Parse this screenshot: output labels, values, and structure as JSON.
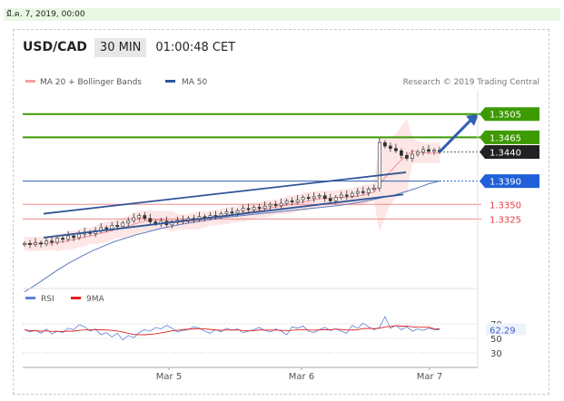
{
  "date_header": "มี.ค. 7, 2019, 00:00",
  "symbol": "USD/CAD",
  "timeframe": "30 MIN",
  "clock": "01:00:48 CET",
  "legend": {
    "ma20": "MA 20 + Bollinger Bands",
    "ma50": "MA 50",
    "credit": "Research © 2019 Trading Central",
    "ma20_color": "#f4a0a0",
    "ma50_color": "#2f5597"
  },
  "chart_data": {
    "type": "line",
    "y_range": [
      1.3215,
      1.3545
    ],
    "x_labels": [
      "Mar 5",
      "Mar 6",
      "Mar 7"
    ],
    "price_levels": [
      {
        "value": 1.3505,
        "label": "1.3505",
        "kind": "resistance",
        "color": "#3d9a00"
      },
      {
        "value": 1.3465,
        "label": "1.3465",
        "kind": "resistance",
        "color": "#3d9a00"
      },
      {
        "value": 1.344,
        "label": "1.3440",
        "kind": "last",
        "color": "#222222"
      },
      {
        "value": 1.339,
        "label": "1.3390",
        "kind": "pivot",
        "color": "#2060d8"
      },
      {
        "value": 1.335,
        "label": "1.3350",
        "kind": "support",
        "color": "#e43d3d"
      },
      {
        "value": 1.3325,
        "label": "1.3325",
        "kind": "support",
        "color": "#e43d3d"
      }
    ],
    "close_series": [
      1.3283,
      1.3281,
      1.3284,
      1.3282,
      1.3287,
      1.3285,
      1.3292,
      1.329,
      1.3296,
      1.3293,
      1.3299,
      1.3302,
      1.33,
      1.3305,
      1.331,
      1.3308,
      1.3314,
      1.3312,
      1.3318,
      1.3322,
      1.3327,
      1.3331,
      1.3326,
      1.332,
      1.3317,
      1.3321,
      1.3315,
      1.3319,
      1.3323,
      1.3322,
      1.3326,
      1.3324,
      1.3329,
      1.3327,
      1.3331,
      1.333,
      1.3334,
      1.3337,
      1.3335,
      1.3339,
      1.3343,
      1.3341,
      1.3345,
      1.3343,
      1.3347,
      1.335,
      1.3348,
      1.3352,
      1.3356,
      1.3354,
      1.3358,
      1.3362,
      1.336,
      1.3363,
      1.3365,
      1.336,
      1.3356,
      1.3362,
      1.3366,
      1.3364,
      1.3369,
      1.3372,
      1.337,
      1.3376,
      1.3378,
      1.3456,
      1.345,
      1.3446,
      1.3442,
      1.3434,
      1.3429,
      1.3436,
      1.344,
      1.3444,
      1.3441,
      1.3443,
      1.344
    ],
    "ma50_series": [
      1.32,
      1.3212,
      1.3225,
      1.3238,
      1.325,
      1.326,
      1.327,
      1.3278,
      1.3286,
      1.3292,
      1.3298,
      1.3303,
      1.3308,
      1.3312,
      1.3316,
      1.3319,
      1.3322,
      1.3325,
      1.3328,
      1.333,
      1.3332,
      1.3334,
      1.3336,
      1.3338,
      1.334,
      1.3342,
      1.3344,
      1.3346,
      1.3348,
      1.3351,
      1.3354,
      1.3358,
      1.3362,
      1.3366,
      1.3372,
      1.3378,
      1.3385,
      1.339
    ],
    "rsi": {
      "name": "RSI",
      "ma_name": "9MA",
      "levels": [
        "70",
        "50",
        "30"
      ],
      "value_label": "62.29",
      "values": [
        62,
        59,
        61,
        57,
        63,
        56,
        60,
        58,
        64,
        62,
        69,
        66,
        60,
        63,
        55,
        58,
        52,
        57,
        48,
        54,
        51,
        58,
        62,
        60,
        65,
        63,
        68,
        64,
        59,
        61,
        62,
        66,
        64,
        60,
        57,
        62,
        59,
        64,
        61,
        63,
        58,
        60,
        62,
        65,
        61,
        59,
        63,
        60,
        55,
        66,
        64,
        67,
        60,
        58,
        62,
        65,
        61,
        63,
        60,
        57,
        68,
        64,
        71,
        66,
        62,
        65,
        80,
        64,
        68,
        62,
        66,
        60,
        63,
        61,
        64,
        62,
        62
      ]
    },
    "channel_lines": [
      {
        "from": 1.3334,
        "to": 1.3405
      },
      {
        "from": 1.3293,
        "to": 1.3367
      }
    ],
    "target_arrow": {
      "from": 1.344,
      "to": 1.3505
    }
  }
}
